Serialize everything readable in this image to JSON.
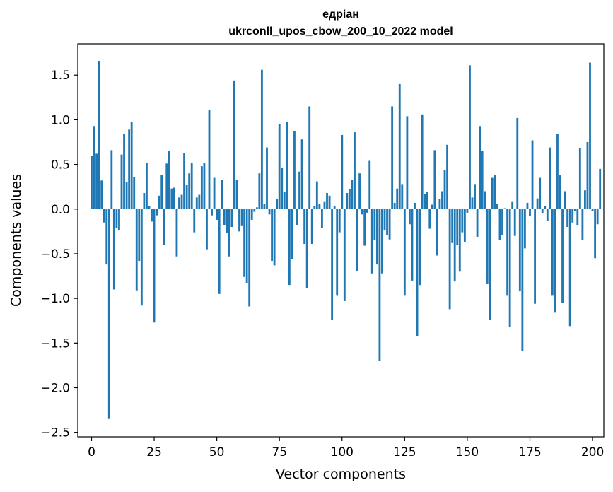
{
  "chart_data": {
    "type": "bar",
    "title_line1": "едріан",
    "title_line2": "ukrconll_upos_cbow_200_10_2022 model",
    "xlabel": "Vector components",
    "ylabel": "Components values",
    "bar_color": "#1f77b4",
    "xlim": [
      -5.5,
      204.5
    ],
    "ylim": [
      -2.55,
      1.85
    ],
    "x_ticks": [
      0,
      25,
      50,
      75,
      100,
      125,
      150,
      175,
      200
    ],
    "x_tick_labels": [
      "0",
      "25",
      "50",
      "75",
      "100",
      "125",
      "150",
      "175",
      "200"
    ],
    "y_ticks": [
      1.5,
      1.0,
      0.5,
      0.0,
      -0.5,
      -1.0,
      -1.5,
      -2.0,
      -2.5
    ],
    "y_tick_labels": [
      "1.5",
      "1.0",
      "0.5",
      "0.0",
      "−0.5",
      "−1.0",
      "−1.5",
      "−2.0",
      "−2.5"
    ],
    "values": [
      0.6,
      0.93,
      0.62,
      1.66,
      0.32,
      -0.15,
      -0.62,
      -2.35,
      0.66,
      -0.9,
      -0.21,
      -0.24,
      0.61,
      0.84,
      0.3,
      0.89,
      0.98,
      0.36,
      -0.91,
      -0.58,
      -1.08,
      0.18,
      0.52,
      0.03,
      -0.14,
      -1.27,
      -0.07,
      0.15,
      0.38,
      -0.4,
      0.51,
      0.65,
      0.23,
      0.24,
      -0.53,
      0.13,
      0.16,
      0.63,
      0.27,
      0.4,
      0.52,
      -0.26,
      0.13,
      0.16,
      0.48,
      0.52,
      -0.45,
      1.11,
      -0.07,
      0.35,
      -0.12,
      -0.95,
      0.33,
      -0.18,
      -0.27,
      -0.53,
      -0.2,
      1.44,
      0.33,
      -0.25,
      -0.19,
      -0.76,
      -0.83,
      -1.09,
      -0.12,
      -0.03,
      0.02,
      0.4,
      1.56,
      0.06,
      0.69,
      -0.06,
      -0.58,
      -0.63,
      0.11,
      0.95,
      0.46,
      0.19,
      0.98,
      -0.85,
      -0.56,
      0.87,
      -0.18,
      0.42,
      0.78,
      -0.39,
      -0.88,
      1.15,
      -0.39,
      0.03,
      0.31,
      0.06,
      -0.21,
      0.08,
      0.18,
      0.15,
      -1.24,
      0.03,
      -0.97,
      -0.26,
      0.83,
      -1.03,
      0.18,
      0.22,
      0.33,
      0.86,
      -0.69,
      0.4,
      -0.06,
      -0.41,
      -0.04,
      0.54,
      -0.72,
      -0.35,
      -0.62,
      -1.7,
      -0.72,
      -0.24,
      -0.29,
      -0.34,
      1.15,
      0.07,
      0.23,
      1.4,
      0.28,
      -0.97,
      1.04,
      -0.17,
      -0.8,
      0.07,
      -1.42,
      -0.85,
      1.06,
      0.17,
      0.19,
      -0.22,
      0.05,
      0.66,
      -0.52,
      0.11,
      0.2,
      0.44,
      0.72,
      -1.12,
      -0.38,
      -0.81,
      -0.4,
      -0.7,
      -0.26,
      -0.37,
      -0.04,
      1.61,
      0.13,
      0.28,
      -0.31,
      0.93,
      0.65,
      0.2,
      -0.84,
      -1.24,
      0.35,
      0.38,
      0.06,
      -0.35,
      -0.29,
      0.01,
      -0.97,
      -1.32,
      0.08,
      -0.3,
      1.02,
      -0.92,
      -1.59,
      -0.44,
      0.07,
      -0.08,
      0.77,
      -1.06,
      0.12,
      0.35,
      -0.05,
      0.03,
      -0.13,
      0.69,
      -0.97,
      -1.16,
      0.84,
      0.38,
      -1.05,
      0.2,
      -0.2,
      -1.31,
      -0.15,
      -0.02,
      -0.18,
      0.68,
      -0.35,
      0.21,
      0.75,
      1.64,
      -0.02,
      -0.55,
      -0.17,
      0.45
    ]
  }
}
